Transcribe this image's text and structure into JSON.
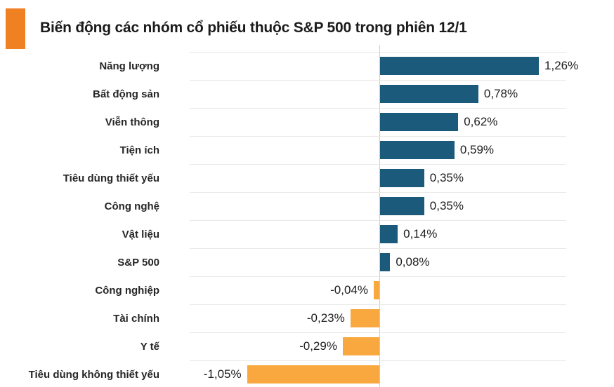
{
  "header": {
    "title": "Biến động các nhóm cổ phiếu thuộc S&P 500 trong phiên 12/1",
    "accent_color": "#f08122"
  },
  "chart_data": {
    "type": "bar",
    "orientation": "horizontal",
    "title": "Biến động các nhóm cổ phiếu thuộc S&P 500 trong phiên 12/1",
    "xlabel": "",
    "ylabel": "",
    "xlim": [
      -1.5,
      1.5
    ],
    "grid": "horizontal-row-separators",
    "legend": null,
    "unit": "%",
    "decimal_separator": ",",
    "categories": [
      "Năng lượng",
      "Bất động sản",
      "Viễn thông",
      "Tiện ích",
      "Tiêu dùng thiết yếu",
      "Công nghệ",
      "Vật liệu",
      "S&P 500",
      "Công nghiệp",
      "Tài chính",
      "Y tế",
      "Tiêu dùng không thiết yếu"
    ],
    "values": [
      1.26,
      0.78,
      0.62,
      0.59,
      0.35,
      0.35,
      0.14,
      0.08,
      -0.04,
      -0.23,
      -0.29,
      -1.05
    ],
    "value_labels": [
      "1,26%",
      "0,78%",
      "0,62%",
      "0,59%",
      "0,35%",
      "0,35%",
      "0,14%",
      "0,08%",
      "-0,04%",
      "-0,23%",
      "-0,29%",
      "-1,05%"
    ],
    "colors": {
      "positive": "#1b5a7a",
      "negative": "#f8a83e",
      "gridline": "#e9e9e9",
      "zero_line": "#c9c9c9",
      "label_text": "#262626",
      "value_text": "#1e1e1e"
    }
  }
}
